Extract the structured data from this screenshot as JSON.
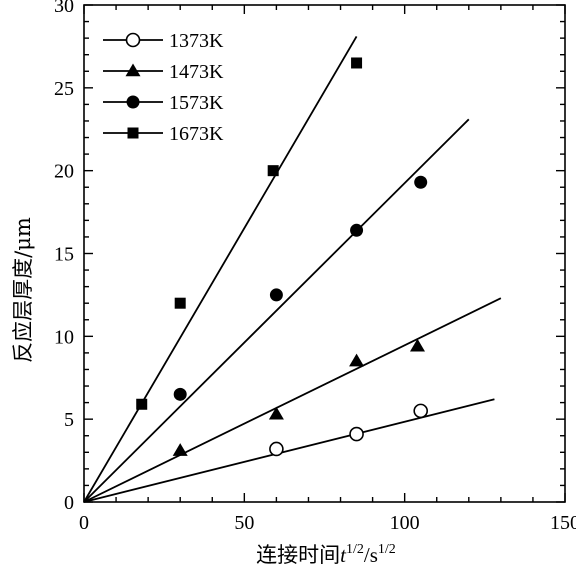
{
  "chart_data": {
    "type": "scatter",
    "xlabel_parts": {
      "prefix": "连接时间",
      "t": "t",
      "t_exp": "1/2",
      "slash": "/s",
      "s_exp": "1/2"
    },
    "ylabel": "反应层厚度/μm",
    "xlim": [
      0,
      150
    ],
    "ylim": [
      0,
      30
    ],
    "xticks": [
      0,
      50,
      100,
      150
    ],
    "yticks": [
      0,
      5,
      10,
      15,
      20,
      25,
      30
    ],
    "grid": false,
    "legend_position": "top-left",
    "series": [
      {
        "name": "1373K",
        "marker": "open-circle",
        "points": [
          [
            60,
            3.2
          ],
          [
            85,
            4.1
          ],
          [
            105,
            5.5
          ]
        ],
        "fit_line": [
          [
            0,
            0
          ],
          [
            128,
            6.2
          ]
        ]
      },
      {
        "name": "1473K",
        "marker": "triangle",
        "points": [
          [
            30,
            3.1
          ],
          [
            60,
            5.3
          ],
          [
            85,
            8.5
          ],
          [
            104,
            9.4
          ]
        ],
        "fit_line": [
          [
            0,
            0
          ],
          [
            130,
            12.3
          ]
        ]
      },
      {
        "name": "1573K",
        "marker": "circle",
        "points": [
          [
            30,
            6.5
          ],
          [
            60,
            12.5
          ],
          [
            85,
            16.4
          ],
          [
            105,
            19.3
          ]
        ],
        "fit_line": [
          [
            0,
            0
          ],
          [
            120,
            23.1
          ]
        ]
      },
      {
        "name": "1673K",
        "marker": "square",
        "points": [
          [
            18,
            5.9
          ],
          [
            30,
            12.0
          ],
          [
            59,
            20.0
          ],
          [
            85,
            26.5
          ]
        ],
        "fit_line": [
          [
            0,
            0
          ],
          [
            85,
            28.1
          ]
        ]
      }
    ]
  }
}
